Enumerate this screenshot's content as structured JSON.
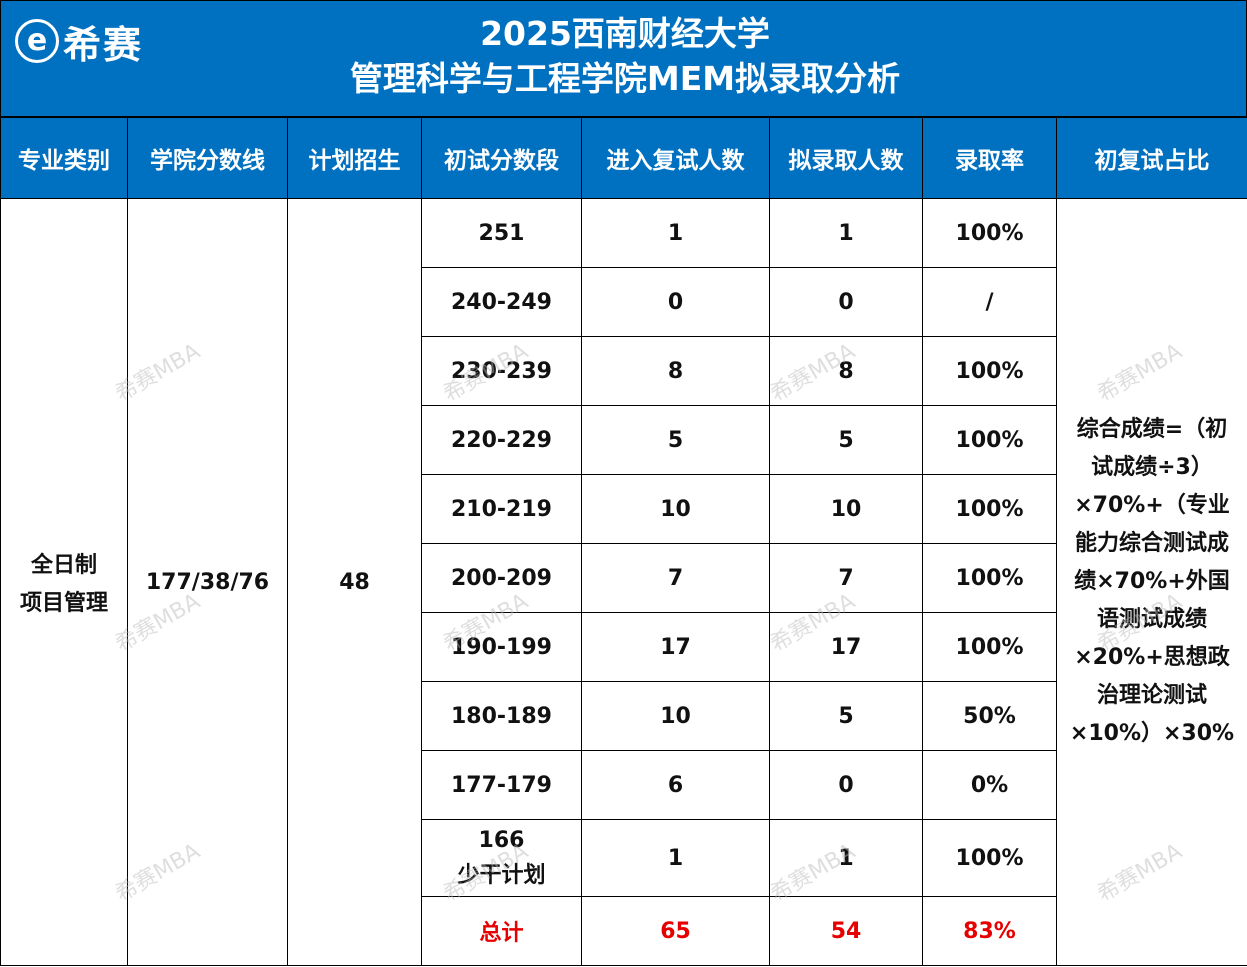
{
  "logo": {
    "icon_glyph": "e",
    "text": "希赛"
  },
  "title": {
    "line1": "2025西南财经大学",
    "line2": "管理科学与工程学院MEM拟录取分析"
  },
  "colors": {
    "header_bg": "#0070C0",
    "total_text": "#E60000"
  },
  "table": {
    "headers": [
      "专业类别",
      "学院分数线",
      "计划招生",
      "初试分数段",
      "进入复试人数",
      "拟录取人数",
      "录取率",
      "初复试占比"
    ],
    "major": {
      "line1": "全日制",
      "line2": "项目管理"
    },
    "score_line": "177/38/76",
    "plan": "48",
    "rows": [
      {
        "range": "251",
        "retest": "1",
        "admit": "1",
        "rate": "100%"
      },
      {
        "range": "240-249",
        "retest": "0",
        "admit": "0",
        "rate": "/"
      },
      {
        "range": "230-239",
        "retest": "8",
        "admit": "8",
        "rate": "100%"
      },
      {
        "range": "220-229",
        "retest": "5",
        "admit": "5",
        "rate": "100%"
      },
      {
        "range": "210-219",
        "retest": "10",
        "admit": "10",
        "rate": "100%"
      },
      {
        "range": "200-209",
        "retest": "7",
        "admit": "7",
        "rate": "100%"
      },
      {
        "range": "190-199",
        "retest": "17",
        "admit": "17",
        "rate": "100%"
      },
      {
        "range": "180-189",
        "retest": "10",
        "admit": "5",
        "rate": "50%"
      },
      {
        "range": "177-179",
        "retest": "6",
        "admit": "0",
        "rate": "0%"
      },
      {
        "range_line1": "166",
        "range_line2": "少干计划",
        "retest": "1",
        "admit": "1",
        "rate": "100%"
      }
    ],
    "total": {
      "label": "总计",
      "retest": "65",
      "admit": "54",
      "rate": "83%"
    },
    "ratio_lines": [
      "综合成绩=（初",
      "试成绩÷3）",
      "×70%+（专业",
      "能力综合测试成",
      "绩×70%+外国",
      "语测试成绩",
      "×20%+思想政",
      "治理论测试",
      "×10%）×30%"
    ]
  },
  "watermark_text": "希赛MBA"
}
